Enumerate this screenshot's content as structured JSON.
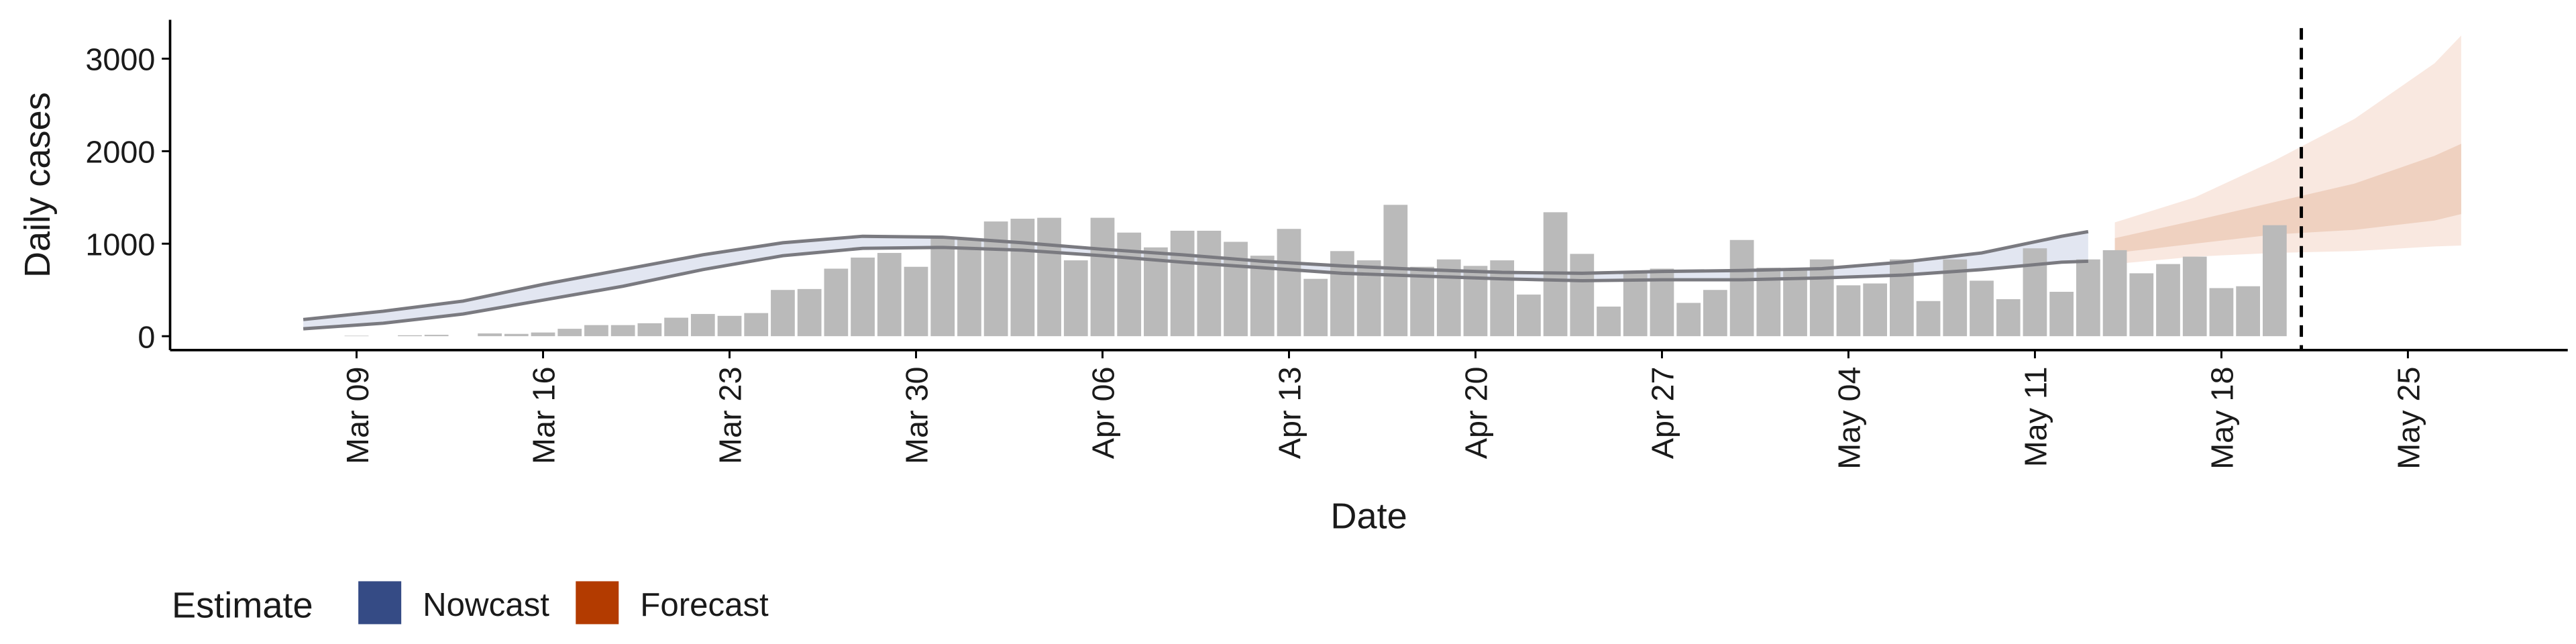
{
  "chart_data": {
    "type": "bar",
    "xlabel": "Date",
    "ylabel": "Daily cases",
    "legend_title": "Estimate",
    "legend_position": "bottom-left",
    "bar_color": "#bababa",
    "xlim": [
      "Mar 02",
      "May 31"
    ],
    "ylim": [
      -150,
      3420
    ],
    "yticks": [
      0,
      1000,
      2000,
      3000
    ],
    "xticks": [
      "Mar 09",
      "Mar 16",
      "Mar 23",
      "Mar 30",
      "Apr 06",
      "Apr 13",
      "Apr 20",
      "Apr 27",
      "May 04",
      "May 11",
      "May 18",
      "May 25"
    ],
    "vline": "May 21",
    "categories": [
      "Mar 09",
      "Mar 10",
      "Mar 11",
      "Mar 12",
      "Mar 13",
      "Mar 14",
      "Mar 15",
      "Mar 16",
      "Mar 17",
      "Mar 18",
      "Mar 19",
      "Mar 20",
      "Mar 21",
      "Mar 22",
      "Mar 23",
      "Mar 24",
      "Mar 25",
      "Mar 26",
      "Mar 27",
      "Mar 28",
      "Mar 29",
      "Mar 30",
      "Mar 31",
      "Apr 01",
      "Apr 02",
      "Apr 03",
      "Apr 04",
      "Apr 05",
      "Apr 06",
      "Apr 07",
      "Apr 08",
      "Apr 09",
      "Apr 10",
      "Apr 11",
      "Apr 12",
      "Apr 13",
      "Apr 14",
      "Apr 15",
      "Apr 16",
      "Apr 17",
      "Apr 18",
      "Apr 19",
      "Apr 20",
      "Apr 21",
      "Apr 22",
      "Apr 23",
      "Apr 24",
      "Apr 25",
      "Apr 26",
      "Apr 27",
      "Apr 28",
      "Apr 29",
      "Apr 30",
      "May 01",
      "May 02",
      "May 03",
      "May 04",
      "May 05",
      "May 06",
      "May 07",
      "May 08",
      "May 09",
      "May 10",
      "May 11",
      "May 12",
      "May 13",
      "May 14",
      "May 15",
      "May 16",
      "May 17",
      "May 18",
      "May 19",
      "May 20"
    ],
    "values": [
      5,
      0,
      10,
      15,
      0,
      30,
      25,
      40,
      80,
      120,
      120,
      140,
      200,
      240,
      220,
      250,
      500,
      510,
      730,
      850,
      900,
      750,
      1060,
      1060,
      1240,
      1270,
      1280,
      820,
      1280,
      1120,
      960,
      1140,
      1140,
      1020,
      870,
      1160,
      620,
      920,
      820,
      1420,
      750,
      830,
      760,
      820,
      450,
      1340,
      890,
      320,
      680,
      730,
      360,
      500,
      1040,
      740,
      720,
      830,
      550,
      570,
      830,
      380,
      830,
      600,
      400,
      950,
      480,
      830,
      930,
      680,
      780,
      860,
      520,
      540,
      1200
    ],
    "series": [
      {
        "name": "Nowcast",
        "color": "#354b85",
        "band_color": "#dde2ee",
        "x": [
          "Mar 07",
          "Mar 10",
          "Mar 13",
          "Mar 16",
          "Mar 19",
          "Mar 22",
          "Mar 25",
          "Mar 28",
          "Mar 31",
          "Apr 03",
          "Apr 06",
          "Apr 09",
          "Apr 12",
          "Apr 15",
          "Apr 18",
          "Apr 21",
          "Apr 24",
          "Apr 27",
          "Apr 30",
          "May 03",
          "May 06",
          "May 09",
          "May 12",
          "May 13"
        ],
        "lower": [
          80,
          140,
          240,
          390,
          540,
          720,
          870,
          950,
          960,
          930,
          870,
          800,
          740,
          680,
          650,
          620,
          600,
          610,
          610,
          630,
          660,
          720,
          800,
          810
        ],
        "upper": [
          180,
          270,
          380,
          560,
          720,
          880,
          1010,
          1080,
          1070,
          1010,
          940,
          880,
          810,
          760,
          720,
          690,
          680,
          700,
          710,
          730,
          800,
          900,
          1080,
          1130
        ]
      },
      {
        "name": "Forecast",
        "color": "#b33b00",
        "band_color": "#f8e4da",
        "inner_color": "#eccab8",
        "x": [
          "May 14",
          "May 17",
          "May 20",
          "May 23",
          "May 26",
          "May 27"
        ],
        "lower": [
          780,
          860,
          900,
          920,
          970,
          980
        ],
        "upper": [
          1230,
          1500,
          1900,
          2350,
          2950,
          3250
        ],
        "inner_lower": [
          900,
          1000,
          1100,
          1150,
          1250,
          1320
        ],
        "inner_upper": [
          1060,
          1250,
          1450,
          1650,
          1950,
          2080
        ]
      }
    ]
  }
}
